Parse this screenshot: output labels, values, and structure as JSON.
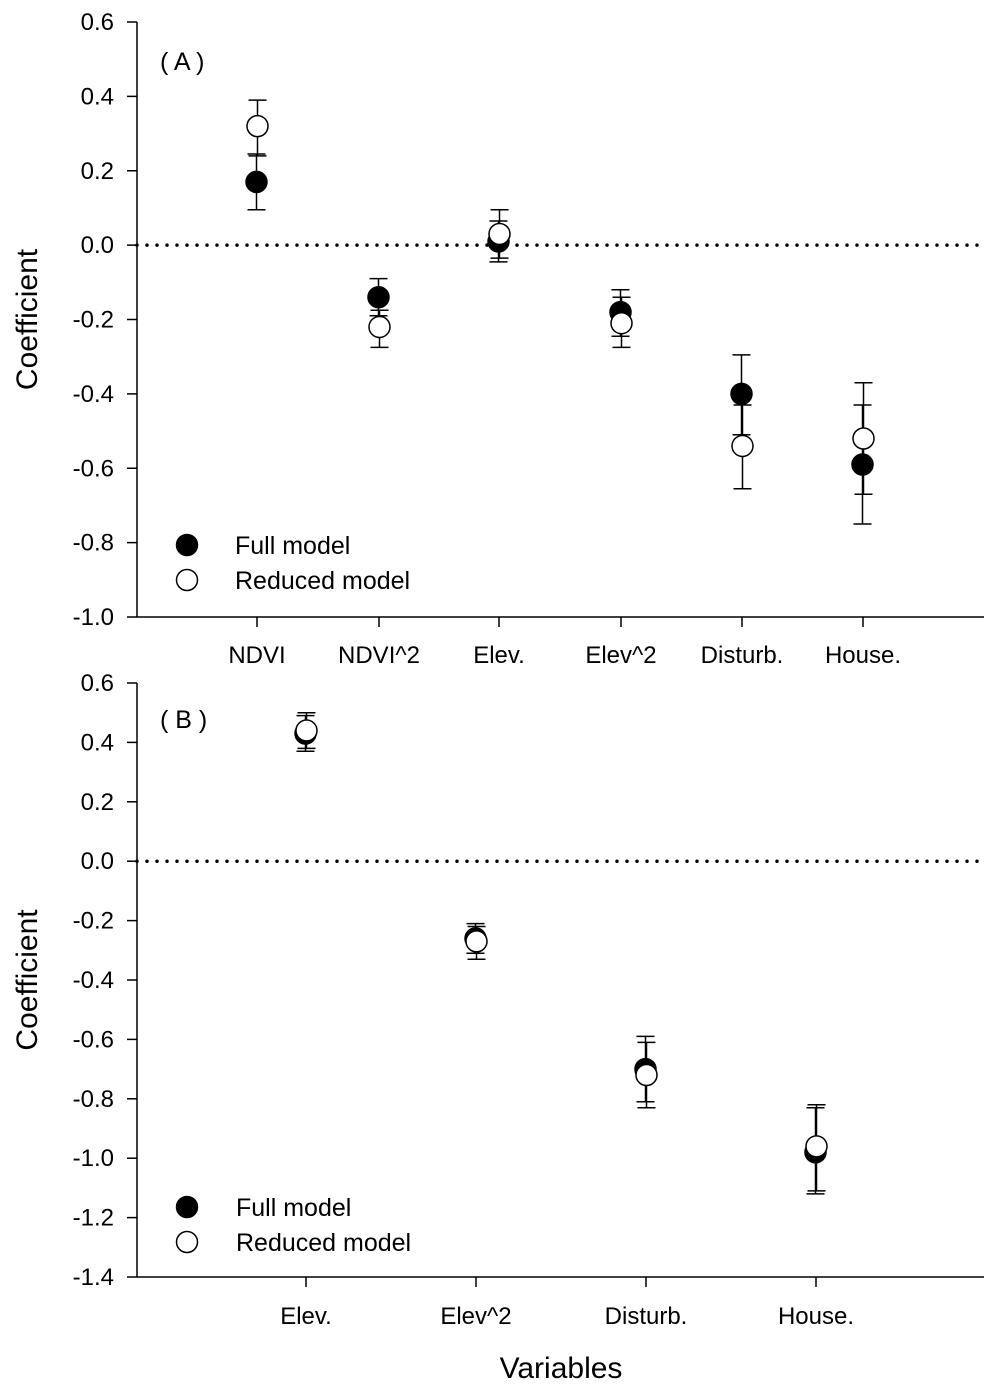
{
  "chart_data": {
    "xlabel": "Variables",
    "panels": [
      {
        "type": "scatter",
        "panel_label": "( A )",
        "ylabel": "Coefficient",
        "ylim": [
          -1.0,
          0.6
        ],
        "yticks": [
          "0.6",
          "0.4",
          "0.2",
          "0.0",
          "-0.2",
          "-0.4",
          "-0.6",
          "-0.8",
          "-1.0"
        ],
        "ytick_values": [
          0.6,
          0.4,
          0.2,
          0.0,
          -0.2,
          -0.4,
          -0.6,
          -0.8,
          -1.0
        ],
        "categories": [
          "NDVI",
          "NDVI^2",
          "Elev.",
          "Elev^2",
          "Disturb.",
          "House."
        ],
        "reference_line": 0.0,
        "legend": {
          "position": "bottom-left"
        },
        "series": [
          {
            "name": "Full model",
            "marker": "filled-circle",
            "values": [
              0.17,
              -0.14,
              0.01,
              -0.18,
              -0.4,
              -0.59
            ],
            "lower": [
              0.095,
              -0.19,
              -0.045,
              -0.245,
              -0.51,
              -0.75
            ],
            "upper": [
              0.245,
              -0.09,
              0.065,
              -0.12,
              -0.295,
              -0.43
            ]
          },
          {
            "name": "Reduced model",
            "marker": "open-circle",
            "values": [
              0.32,
              -0.22,
              0.03,
              -0.21,
              -0.54,
              -0.52
            ],
            "lower": [
              0.24,
              -0.275,
              -0.035,
              -0.275,
              -0.655,
              -0.67
            ],
            "upper": [
              0.39,
              -0.175,
              0.095,
              -0.14,
              -0.43,
              -0.37
            ]
          }
        ]
      },
      {
        "type": "scatter",
        "panel_label": "( B )",
        "ylabel": "Coefficient",
        "ylim": [
          -1.4,
          0.6
        ],
        "yticks": [
          "0.6",
          "0.4",
          "0.2",
          "0.0",
          "-0.2",
          "-0.4",
          "-0.6",
          "-0.8",
          "-1.0",
          "-1.2",
          "-1.4"
        ],
        "ytick_values": [
          0.6,
          0.4,
          0.2,
          0.0,
          -0.2,
          -0.4,
          -0.6,
          -0.8,
          -1.0,
          -1.2,
          -1.4
        ],
        "categories": [
          "Elev.",
          "Elev^2",
          "Disturb.",
          "House."
        ],
        "reference_line": 0.0,
        "legend": {
          "position": "bottom-left"
        },
        "series": [
          {
            "name": "Full model",
            "marker": "filled-circle",
            "values": [
              0.43,
              -0.26,
              -0.7,
              -0.98
            ],
            "lower": [
              0.37,
              -0.31,
              -0.81,
              -1.12
            ],
            "upper": [
              0.49,
              -0.21,
              -0.59,
              -0.83
            ]
          },
          {
            "name": "Reduced model",
            "marker": "open-circle",
            "values": [
              0.44,
              -0.27,
              -0.72,
              -0.96
            ],
            "lower": [
              0.38,
              -0.33,
              -0.83,
              -1.11
            ],
            "upper": [
              0.5,
              -0.22,
              -0.61,
              -0.82
            ]
          }
        ]
      }
    ]
  }
}
